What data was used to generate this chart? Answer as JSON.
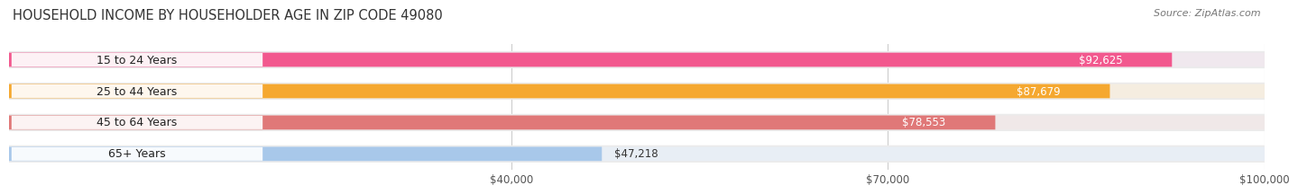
{
  "title": "HOUSEHOLD INCOME BY HOUSEHOLDER AGE IN ZIP CODE 49080",
  "source": "Source: ZipAtlas.com",
  "categories": [
    "15 to 24 Years",
    "25 to 44 Years",
    "45 to 64 Years",
    "65+ Years"
  ],
  "values": [
    92625,
    87679,
    78553,
    47218
  ],
  "value_labels": [
    "$92,625",
    "$87,679",
    "$78,553",
    "$47,218"
  ],
  "bar_colors": [
    "#f2588e",
    "#f5a830",
    "#e07878",
    "#a8c8ea"
  ],
  "bar_bg_colors": [
    "#f0e8ee",
    "#f5ede0",
    "#f0e8e8",
    "#e8eef5"
  ],
  "label_in_bar": [
    true,
    true,
    true,
    true
  ],
  "label_colors": [
    "white",
    "white",
    "white",
    "#333333"
  ],
  "xlim": [
    0,
    100000
  ],
  "xticks": [
    40000,
    70000,
    100000
  ],
  "xtick_labels": [
    "$40,000",
    "$70,000",
    "$100,000"
  ],
  "title_fontsize": 10.5,
  "source_fontsize": 8,
  "cat_fontsize": 9,
  "val_fontsize": 8.5,
  "bar_height": 0.55,
  "background_color": "#ffffff",
  "container_color": "#ebebeb"
}
